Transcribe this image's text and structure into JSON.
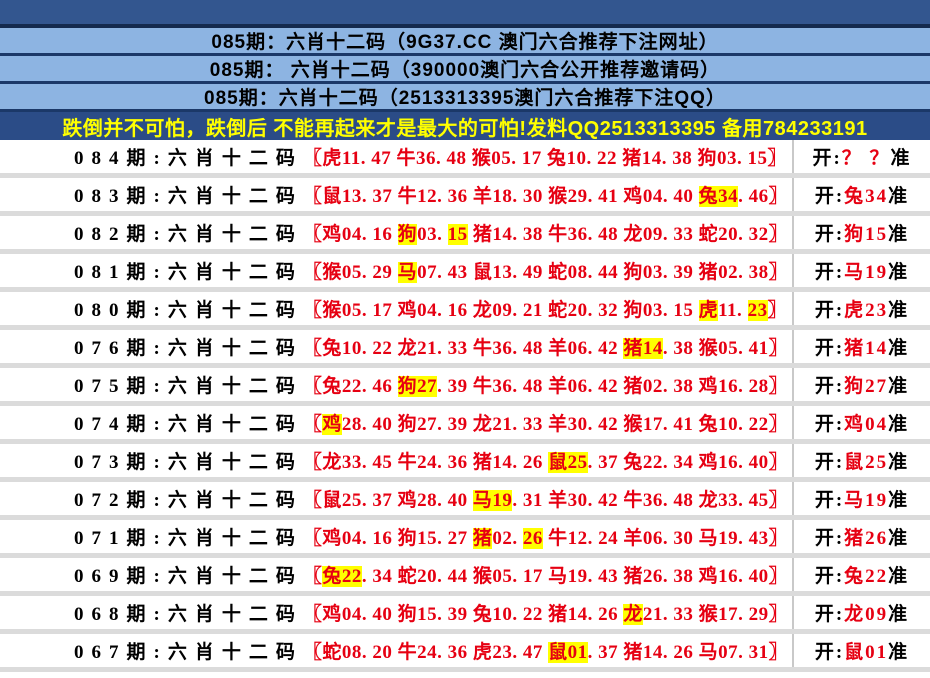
{
  "colors": {
    "top_bar": "#33568F",
    "header_bg": "#8DB4E2",
    "divider_navy": "#1B3868",
    "banner_bg": "#2B4C87",
    "banner_text": "#FFFF00",
    "red_text": "#E60012",
    "highlight": "#FFFF00",
    "row_divider": "#DBDBDB"
  },
  "headers": [
    {
      "text": "085期：六肖十二码（9G37.CC 澳门六合推荐下注网址）"
    },
    {
      "text": "085期： 六肖十二码（390000澳门六合公开推荐邀请码）"
    },
    {
      "text": "085期：六肖十二码（2513313395澳门六合推荐下注QQ）"
    }
  ],
  "banner": {
    "text": "跌倒并不可怕，跌倒后 不能再起来才是最大的可怕!发料QQ2513313395 备用784233191"
  },
  "table": {
    "rows": [
      {
        "period": "084期:六肖十二码",
        "segments": [
          {
            "t": "〖虎11. 47 牛36. 48 猴05. 17 兔10. 22 猪14. 38 狗03. 15〗"
          }
        ],
        "result": {
          "prefix": "开:",
          "value": "？ ？",
          "suffix": "准"
        }
      },
      {
        "period": "083期:六肖十二码",
        "segments": [
          {
            "t": "〖鼠13. 37 牛12. 36 羊18. 30 猴29. 41 鸡04. 40 "
          },
          {
            "t": "兔34",
            "hl": true
          },
          {
            "t": ". 46〗"
          }
        ],
        "result": {
          "prefix": "开:",
          "value": "兔34",
          "suffix": "准"
        }
      },
      {
        "period": "082期:六肖十二码",
        "segments": [
          {
            "t": "〖鸡04. 16 "
          },
          {
            "t": "狗",
            "hl": true
          },
          {
            "t": "03. "
          },
          {
            "t": "15",
            "hl": true
          },
          {
            "t": " 猪14. 38 牛36. 48 龙09. 33 蛇20. 32〗"
          }
        ],
        "result": {
          "prefix": "开:",
          "value": "狗15",
          "suffix": "准"
        }
      },
      {
        "period": "081期:六肖十二码",
        "segments": [
          {
            "t": "〖猴05. 29 "
          },
          {
            "t": "马",
            "hl": true
          },
          {
            "t": "07. 43 鼠13. 49 蛇08. 44 狗03. 39 猪02. 38〗"
          }
        ],
        "result": {
          "prefix": "开:",
          "value": "马19",
          "suffix": "准"
        }
      },
      {
        "period": "080期:六肖十二码",
        "segments": [
          {
            "t": "〖猴05. 17 鸡04. 16 龙09. 21 蛇20. 32 狗03. 15 "
          },
          {
            "t": "虎",
            "hl": true
          },
          {
            "t": "11. "
          },
          {
            "t": "23",
            "hl": true
          },
          {
            "t": "〗"
          }
        ],
        "result": {
          "prefix": "开:",
          "value": "虎23",
          "suffix": "准"
        }
      },
      {
        "period": "076期:六肖十二码",
        "segments": [
          {
            "t": "〖兔10. 22 龙21. 33 牛36. 48 羊06. 42 "
          },
          {
            "t": "猪14",
            "hl": true
          },
          {
            "t": ". 38 猴05. 41〗"
          }
        ],
        "result": {
          "prefix": "开:",
          "value": "猪14",
          "suffix": "准"
        }
      },
      {
        "period": "075期:六肖十二码",
        "segments": [
          {
            "t": "〖兔22. 46 "
          },
          {
            "t": "狗27",
            "hl": true
          },
          {
            "t": ". 39 牛36. 48 羊06. 42 猪02. 38 鸡16. 28〗"
          }
        ],
        "result": {
          "prefix": "开:",
          "value": "狗27",
          "suffix": "准"
        }
      },
      {
        "period": "074期:六肖十二码",
        "segments": [
          {
            "t": "〖"
          },
          {
            "t": "鸡",
            "hl": true
          },
          {
            "t": "28. 40 狗27. 39 龙21. 33 羊30. 42 猴17. 41 兔10. 22〗"
          }
        ],
        "result": {
          "prefix": "开:",
          "value": "鸡04",
          "suffix": "准"
        }
      },
      {
        "period": "073期:六肖十二码",
        "segments": [
          {
            "t": "〖龙33. 45 牛24. 36 猪14. 26 "
          },
          {
            "t": "鼠25",
            "hl": true
          },
          {
            "t": ". 37 兔22. 34 鸡16. 40〗"
          }
        ],
        "result": {
          "prefix": "开:",
          "value": "鼠25",
          "suffix": "准"
        }
      },
      {
        "period": "072期:六肖十二码",
        "segments": [
          {
            "t": "〖鼠25. 37 鸡28. 40 "
          },
          {
            "t": "马19",
            "hl": true
          },
          {
            "t": ". 31 羊30. 42 牛36. 48 龙33. 45〗"
          }
        ],
        "result": {
          "prefix": "开:",
          "value": "马19",
          "suffix": "准"
        }
      },
      {
        "period": "071期:六肖十二码",
        "segments": [
          {
            "t": "〖鸡04. 16 狗15. 27 "
          },
          {
            "t": "猪",
            "hl": true
          },
          {
            "t": "02. "
          },
          {
            "t": "26",
            "hl": true
          },
          {
            "t": " 牛12. 24 羊06. 30 马19. 43〗"
          }
        ],
        "result": {
          "prefix": "开:",
          "value": "猪26",
          "suffix": "准"
        }
      },
      {
        "period": "069期:六肖十二码",
        "segments": [
          {
            "t": "〖"
          },
          {
            "t": "兔22",
            "hl": true
          },
          {
            "t": ". 34 蛇20. 44 猴05. 17 马19. 43 猪26. 38 鸡16. 40〗"
          }
        ],
        "result": {
          "prefix": "开:",
          "value": "兔22",
          "suffix": "准"
        }
      },
      {
        "period": "068期:六肖十二码",
        "segments": [
          {
            "t": "〖鸡04. 40 狗15. 39 兔10. 22 猪14. 26 "
          },
          {
            "t": "龙",
            "hl": true
          },
          {
            "t": "21. 33 猴17. 29〗"
          }
        ],
        "result": {
          "prefix": "开:",
          "value": "龙09",
          "suffix": "准"
        }
      },
      {
        "period": "067期:六肖十二码",
        "segments": [
          {
            "t": "〖蛇08. 20 牛24. 36 虎23. 47 "
          },
          {
            "t": "鼠01",
            "hl": true
          },
          {
            "t": ". 37 猪14. 26 马07. 31〗"
          }
        ],
        "result": {
          "prefix": "开:",
          "value": "鼠01",
          "suffix": "准"
        }
      }
    ]
  }
}
